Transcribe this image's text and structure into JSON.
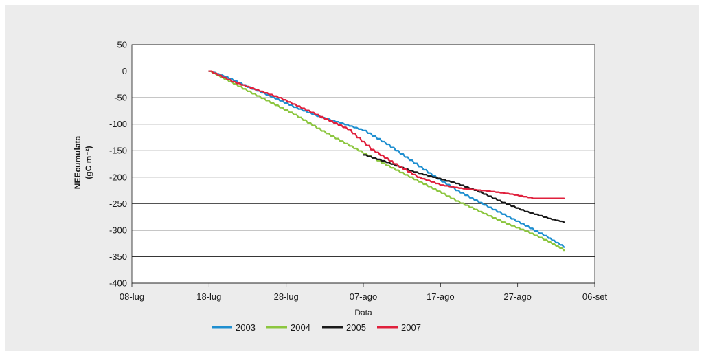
{
  "chart_data": {
    "type": "line",
    "xlabel": "Data",
    "ylabel": "NEEcumulata",
    "ylabel_unit": "(gC m⁻²)",
    "ylim": [
      -400,
      50
    ],
    "yticks": [
      50,
      0,
      -50,
      -100,
      -150,
      -200,
      -250,
      -300,
      -350,
      -400
    ],
    "xlim": [
      "2000-07-08",
      "2000-09-06"
    ],
    "xticks": [
      {
        "date": "2000-07-08",
        "label": "08-lug"
      },
      {
        "date": "2000-07-18",
        "label": "18-lug"
      },
      {
        "date": "2000-07-28",
        "label": "28-lug"
      },
      {
        "date": "2000-08-07",
        "label": "07-ago"
      },
      {
        "date": "2000-08-17",
        "label": "17-ago"
      },
      {
        "date": "2000-08-27",
        "label": "27-ago"
      },
      {
        "date": "2000-09-06",
        "label": "06-set"
      }
    ],
    "grid": "horizontal",
    "legend_position": "bottom",
    "series": [
      {
        "name": "2003",
        "color": "#1f8fd0",
        "x": [
          "2000-07-18",
          "2000-07-20",
          "2000-07-23",
          "2000-07-26",
          "2000-07-29",
          "2000-08-01",
          "2000-08-04",
          "2000-08-07",
          "2000-08-10",
          "2000-08-13",
          "2000-08-16",
          "2000-08-19",
          "2000-08-22",
          "2000-08-25",
          "2000-08-28",
          "2000-08-31",
          "2000-09-02"
        ],
        "y": [
          0,
          -10,
          -30,
          -48,
          -68,
          -85,
          -98,
          -112,
          -138,
          -168,
          -198,
          -225,
          -248,
          -270,
          -292,
          -315,
          -332
        ]
      },
      {
        "name": "2004",
        "color": "#8cc63f",
        "x": [
          "2000-07-18",
          "2000-07-20",
          "2000-07-23",
          "2000-07-26",
          "2000-07-29",
          "2000-08-01",
          "2000-08-04",
          "2000-08-07",
          "2000-08-10",
          "2000-08-13",
          "2000-08-16",
          "2000-08-19",
          "2000-08-22",
          "2000-08-25",
          "2000-08-28",
          "2000-08-31",
          "2000-09-02"
        ],
        "y": [
          0,
          -15,
          -38,
          -60,
          -82,
          -108,
          -132,
          -155,
          -178,
          -200,
          -222,
          -245,
          -265,
          -285,
          -302,
          -322,
          -338
        ]
      },
      {
        "name": "2005",
        "color": "#1a1a1a",
        "x": [
          "2000-08-07",
          "2000-08-10",
          "2000-08-13",
          "2000-08-16",
          "2000-08-19",
          "2000-08-22",
          "2000-08-25",
          "2000-08-28",
          "2000-08-31",
          "2000-09-02"
        ],
        "y": [
          -158,
          -172,
          -188,
          -200,
          -212,
          -228,
          -248,
          -265,
          -278,
          -285
        ]
      },
      {
        "name": "2007",
        "color": "#e0203c",
        "x": [
          "2000-07-18",
          "2000-07-21",
          "2000-07-24",
          "2000-07-27",
          "2000-07-30",
          "2000-08-02",
          "2000-08-05",
          "2000-08-08",
          "2000-08-11",
          "2000-08-14",
          "2000-08-17",
          "2000-08-20",
          "2000-08-23",
          "2000-08-26",
          "2000-08-29",
          "2000-09-02"
        ],
        "y": [
          0,
          -20,
          -35,
          -50,
          -70,
          -90,
          -110,
          -148,
          -175,
          -200,
          -215,
          -222,
          -226,
          -232,
          -240,
          -240
        ]
      }
    ]
  }
}
